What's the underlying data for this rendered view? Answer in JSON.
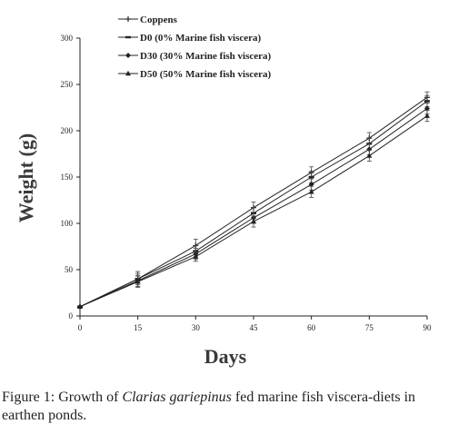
{
  "chart_data": {
    "type": "line",
    "xlabel": "Days",
    "ylabel": "Weight (g)",
    "x": [
      0,
      15,
      30,
      45,
      60,
      75,
      90
    ],
    "xticks": [
      "0",
      "15",
      "30",
      "45",
      "60",
      "75",
      "90"
    ],
    "yticks": [
      "0",
      "50",
      "100",
      "150",
      "200",
      "250",
      "300"
    ],
    "xlim": [
      0,
      90
    ],
    "ylim": [
      0,
      300
    ],
    "grid": false,
    "legend_position": "top-left",
    "series": [
      {
        "name": "Coppens",
        "values": [
          10,
          40,
          76,
          117,
          155,
          192,
          236
        ],
        "errors": [
          0,
          8,
          7,
          6,
          6,
          6,
          6
        ]
      },
      {
        "name": "D0 (0% Marine fish viscera)",
        "values": [
          10,
          40,
          70,
          111,
          150,
          186,
          232
        ],
        "errors": [
          0,
          6,
          6,
          6,
          6,
          6,
          6
        ]
      },
      {
        "name": "D30 (30% Marine fish viscera)",
        "values": [
          10,
          38,
          67,
          106,
          142,
          180,
          224
        ],
        "errors": [
          0,
          6,
          6,
          6,
          6,
          6,
          6
        ]
      },
      {
        "name": "D50 (50% Marine fish viscera)",
        "values": [
          10,
          37,
          64,
          102,
          134,
          173,
          216
        ],
        "errors": [
          0,
          6,
          5,
          6,
          6,
          6,
          6
        ]
      }
    ]
  },
  "caption": {
    "prefix": "Figure 1: Growth of ",
    "species": "Clarias gariepinus",
    "suffix": " fed marine fish viscera-diets in earthen ponds."
  }
}
